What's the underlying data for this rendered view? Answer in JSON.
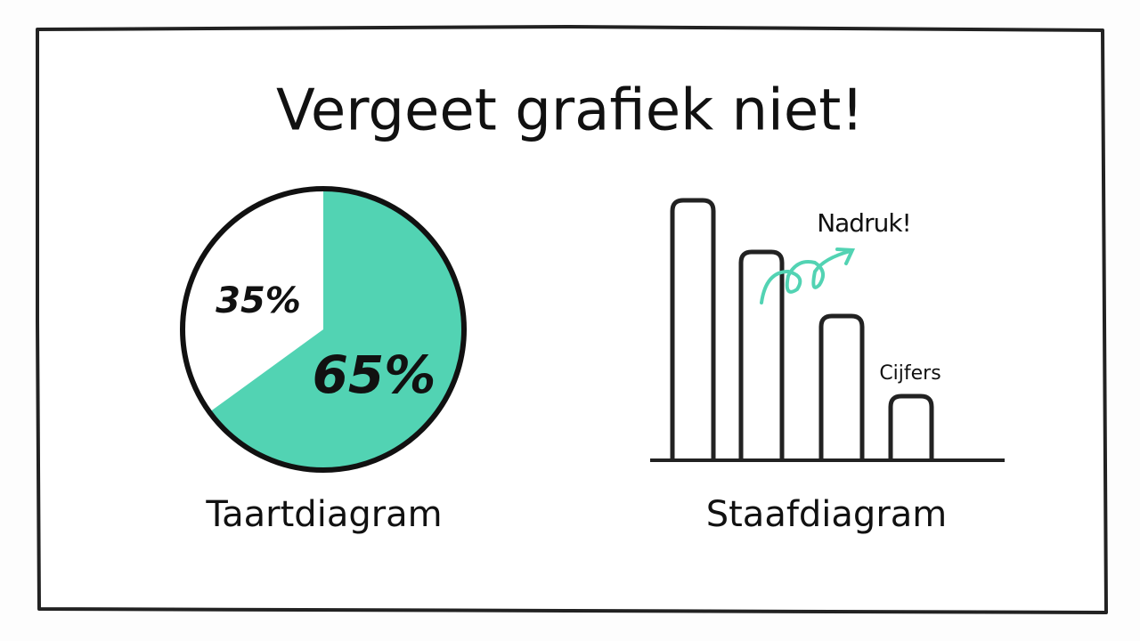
{
  "title": "Vergeet grafiek niet!",
  "chart_data": [
    {
      "type": "pie",
      "values": [
        35,
        65
      ],
      "value_labels": [
        "35%",
        "65%"
      ],
      "colors": [
        "#ffffff",
        "#52d3b3"
      ],
      "caption": "Taartdiagram"
    },
    {
      "type": "bar",
      "values": [
        292,
        234,
        162,
        72
      ],
      "color": "#ffffff",
      "annotations": [
        "Nadruk!",
        "Cijfers"
      ],
      "caption": "Staafdiagram"
    }
  ]
}
